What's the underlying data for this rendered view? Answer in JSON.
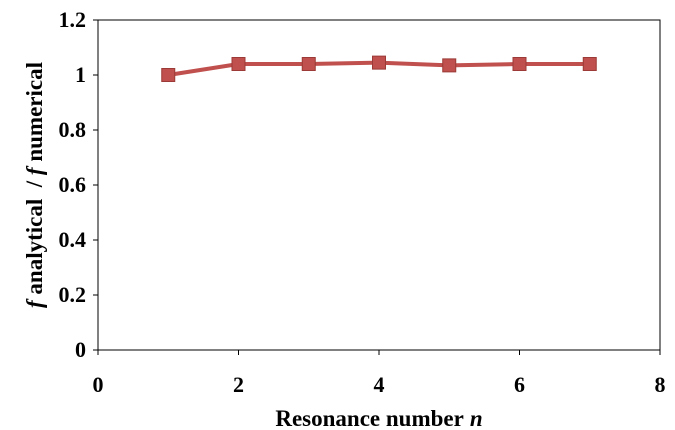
{
  "chart_data": {
    "type": "line",
    "title": "",
    "xlabel": "Resonance number",
    "xlabel_var": "n",
    "ylabel_parts": {
      "f1": "f",
      "t1": " analytical  / ",
      "f2": "f",
      "t2": " numerical"
    },
    "xlim": [
      0,
      8
    ],
    "ylim": [
      0,
      1.2
    ],
    "xticks": [
      "0",
      "2",
      "4",
      "6",
      "8"
    ],
    "yticks": [
      "0",
      "0.2",
      "0.4",
      "0.6",
      "0.8",
      "1",
      "1.2"
    ],
    "grid": false,
    "legend": "none",
    "series": [
      {
        "color": "#C0504D",
        "marker": "square",
        "x": [
          1,
          2,
          3,
          4,
          5,
          6,
          7
        ],
        "y": [
          1.0,
          1.04,
          1.04,
          1.045,
          1.035,
          1.04,
          1.04
        ]
      }
    ]
  }
}
